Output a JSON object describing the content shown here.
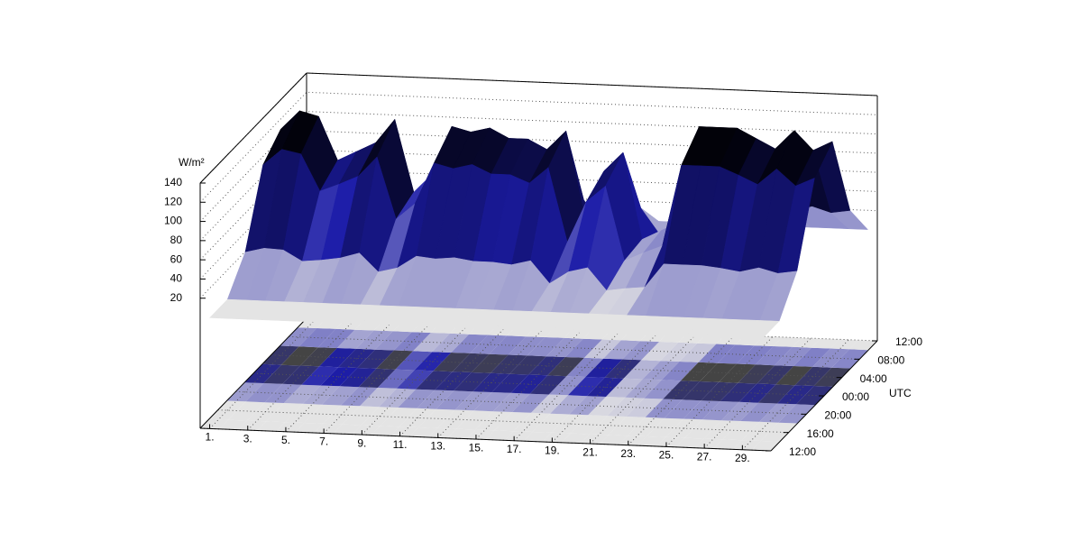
{
  "chart_data": {
    "type": "surface",
    "zlabel": "W/m²",
    "ylabel": "UTC",
    "x": [
      1,
      2,
      3,
      4,
      5,
      6,
      7,
      8,
      9,
      10,
      11,
      12,
      13,
      14,
      15,
      16,
      17,
      18,
      19,
      20,
      21,
      22,
      23,
      24,
      25,
      26,
      27,
      28,
      29,
      30
    ],
    "y": [
      0,
      4,
      8,
      12,
      16,
      20,
      24
    ],
    "values": [
      [
        0,
        0,
        30,
        102,
        120,
        36,
        0
      ],
      [
        0,
        0,
        35,
        119,
        140,
        42,
        0
      ],
      [
        0,
        0,
        34,
        115,
        135,
        41,
        0
      ],
      [
        0,
        0,
        23,
        77,
        90,
        27,
        0
      ],
      [
        0,
        0,
        25,
        85,
        100,
        30,
        0
      ],
      [
        0,
        0,
        28,
        94,
        110,
        33,
        0
      ],
      [
        0,
        0,
        34,
        115,
        135,
        41,
        0
      ],
      [
        0,
        0,
        15,
        51,
        60,
        18,
        0
      ],
      [
        0,
        0,
        20,
        68,
        80,
        24,
        0
      ],
      [
        0,
        0,
        33,
        111,
        130,
        39,
        0
      ],
      [
        0,
        0,
        31,
        106,
        125,
        38,
        0
      ],
      [
        0,
        0,
        33,
        111,
        130,
        39,
        0
      ],
      [
        0,
        0,
        30,
        102,
        120,
        36,
        0
      ],
      [
        0,
        0,
        30,
        102,
        120,
        36,
        0
      ],
      [
        0,
        0,
        28,
        94,
        110,
        33,
        0
      ],
      [
        0,
        0,
        33,
        111,
        130,
        39,
        0
      ],
      [
        0,
        0,
        10,
        34,
        40,
        12,
        0
      ],
      [
        0,
        0,
        23,
        77,
        90,
        27,
        0
      ],
      [
        0,
        0,
        28,
        94,
        110,
        33,
        0
      ],
      [
        0,
        0,
        5,
        17,
        20,
        6,
        0
      ],
      [
        0,
        0,
        8,
        26,
        30,
        9,
        0
      ],
      [
        0,
        0,
        10,
        34,
        40,
        12,
        0
      ],
      [
        0,
        0,
        35,
        119,
        140,
        42,
        0
      ],
      [
        0,
        0,
        35,
        119,
        140,
        42,
        0
      ],
      [
        0,
        0,
        35,
        119,
        140,
        42,
        0
      ],
      [
        0,
        0,
        33,
        111,
        130,
        39,
        0
      ],
      [
        0,
        0,
        30,
        102,
        120,
        36,
        0
      ],
      [
        0,
        0,
        35,
        119,
        140,
        42,
        0
      ],
      [
        0,
        0,
        30,
        102,
        120,
        36,
        0
      ],
      [
        0,
        0,
        33,
        111,
        130,
        39,
        0
      ]
    ],
    "xlim": [
      0.5,
      30.5
    ],
    "xticks": [
      {
        "value": 1,
        "label": "1."
      },
      {
        "value": 3,
        "label": "3."
      },
      {
        "value": 5,
        "label": "5."
      },
      {
        "value": 7,
        "label": "7."
      },
      {
        "value": 9,
        "label": "9."
      },
      {
        "value": 11,
        "label": "11."
      },
      {
        "value": 13,
        "label": "13."
      },
      {
        "value": 15,
        "label": "15."
      },
      {
        "value": 17,
        "label": "17."
      },
      {
        "value": 19,
        "label": "19."
      },
      {
        "value": 21,
        "label": "21."
      },
      {
        "value": 23,
        "label": "23."
      },
      {
        "value": 25,
        "label": "25."
      },
      {
        "value": 27,
        "label": "27."
      },
      {
        "value": 29,
        "label": "29."
      }
    ],
    "ylim": [
      0,
      24
    ],
    "yticks": [
      {
        "value": 0,
        "label": "12:00"
      },
      {
        "value": 4,
        "label": "16:00"
      },
      {
        "value": 8,
        "label": "20:00"
      },
      {
        "value": 12,
        "label": "00:00"
      },
      {
        "value": 16,
        "label": "04:00"
      },
      {
        "value": 20,
        "label": "08:00"
      },
      {
        "value": 24,
        "label": "12:00"
      }
    ],
    "zlim": [
      0,
      140
    ],
    "zticks": [
      20,
      40,
      60,
      80,
      100,
      120,
      140
    ],
    "grid": true,
    "colors": {
      "low": "#e4e4e4",
      "mid": "#1c1ca8",
      "high": "#000000",
      "floor_high": "#444444"
    }
  }
}
